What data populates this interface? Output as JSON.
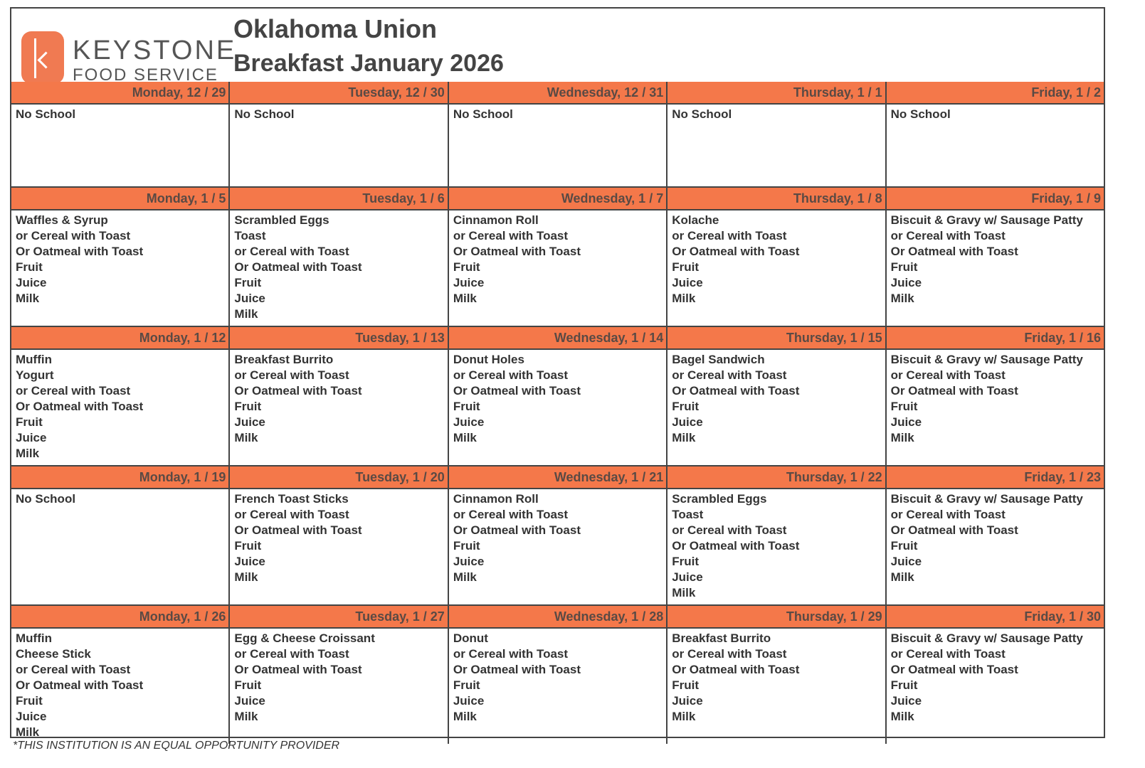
{
  "logo": {
    "word1": "KEYSTONE",
    "word2": "FOOD SERVICE",
    "color": "#f07a52"
  },
  "header": {
    "title": "Oklahoma Union",
    "subtitle": "Breakfast January 2026"
  },
  "header_color": "#f4784a",
  "weeks": [
    [
      {
        "date": "Monday, 12 / 29",
        "items": [
          "No School"
        ]
      },
      {
        "date": "Tuesday, 12 / 30",
        "items": [
          "No School"
        ]
      },
      {
        "date": "Wednesday, 12 / 31",
        "items": [
          "No School"
        ]
      },
      {
        "date": "Thursday, 1 / 1",
        "items": [
          "No School"
        ]
      },
      {
        "date": "Friday, 1 / 2",
        "items": [
          "No School"
        ]
      }
    ],
    [
      {
        "date": "Monday, 1 / 5",
        "items": [
          "Waffles & Syrup",
          "or Cereal with Toast",
          "Or Oatmeal with Toast",
          "Fruit",
          "Juice",
          "Milk"
        ]
      },
      {
        "date": "Tuesday, 1 / 6",
        "items": [
          "Scrambled Eggs",
          "Toast",
          "or Cereal with Toast",
          "Or Oatmeal with Toast",
          "Fruit",
          "Juice",
          "Milk"
        ]
      },
      {
        "date": "Wednesday, 1 / 7",
        "items": [
          "Cinnamon Roll",
          "or Cereal with Toast",
          "Or Oatmeal with Toast",
          "Fruit",
          "Juice",
          "Milk"
        ]
      },
      {
        "date": "Thursday, 1 / 8",
        "items": [
          "Kolache",
          "or Cereal with Toast",
          "Or Oatmeal with Toast",
          "Fruit",
          "Juice",
          "Milk"
        ]
      },
      {
        "date": "Friday, 1 / 9",
        "items": [
          "Biscuit & Gravy w/ Sausage Patty",
          "or Cereal with Toast",
          "Or Oatmeal with Toast",
          "Fruit",
          "Juice",
          "Milk"
        ]
      }
    ],
    [
      {
        "date": "Monday, 1 / 12",
        "items": [
          "Muffin",
          "Yogurt",
          "or Cereal with Toast",
          "Or Oatmeal with Toast",
          "Fruit",
          "Juice",
          "Milk"
        ]
      },
      {
        "date": "Tuesday, 1 / 13",
        "items": [
          "Breakfast Burrito",
          "or Cereal with Toast",
          "Or Oatmeal with Toast",
          "Fruit",
          "Juice",
          "Milk"
        ]
      },
      {
        "date": "Wednesday, 1 / 14",
        "items": [
          "Donut Holes",
          "or Cereal with Toast",
          "Or Oatmeal with Toast",
          "Fruit",
          "Juice",
          "Milk"
        ]
      },
      {
        "date": "Thursday, 1 / 15",
        "items": [
          "Bagel Sandwich",
          "or Cereal with Toast",
          "Or Oatmeal with Toast",
          "Fruit",
          "Juice",
          "Milk"
        ]
      },
      {
        "date": "Friday, 1 / 16",
        "items": [
          "Biscuit & Gravy w/ Sausage Patty",
          "or Cereal with Toast",
          "Or Oatmeal with Toast",
          "Fruit",
          "Juice",
          "Milk"
        ]
      }
    ],
    [
      {
        "date": "Monday, 1 / 19",
        "items": [
          "No School"
        ]
      },
      {
        "date": "Tuesday, 1 / 20",
        "items": [
          "French Toast Sticks",
          "or Cereal with Toast",
          "Or Oatmeal with Toast",
          "Fruit",
          "Juice",
          "Milk"
        ]
      },
      {
        "date": "Wednesday, 1 / 21",
        "items": [
          "Cinnamon Roll",
          "or Cereal with Toast",
          "Or Oatmeal with Toast",
          "Fruit",
          "Juice",
          "Milk"
        ]
      },
      {
        "date": "Thursday, 1 / 22",
        "items": [
          "Scrambled Eggs",
          "Toast",
          "or Cereal with Toast",
          "Or Oatmeal with Toast",
          "Fruit",
          "Juice",
          "Milk"
        ]
      },
      {
        "date": "Friday, 1 / 23",
        "items": [
          "Biscuit & Gravy w/ Sausage Patty",
          "or Cereal with Toast",
          "Or Oatmeal with Toast",
          "Fruit",
          "Juice",
          "Milk"
        ]
      }
    ],
    [
      {
        "date": "Monday, 1 / 26",
        "items": [
          "Muffin",
          "Cheese Stick",
          "or Cereal with Toast",
          "Or Oatmeal with Toast",
          "Fruit",
          "Juice",
          "Milk"
        ]
      },
      {
        "date": "Tuesday, 1 / 27",
        "items": [
          "Egg & Cheese Croissant",
          "or Cereal with Toast",
          "Or Oatmeal with Toast",
          "Fruit",
          "Juice",
          "Milk"
        ]
      },
      {
        "date": "Wednesday, 1 / 28",
        "items": [
          "Donut",
          "or Cereal with Toast",
          "Or Oatmeal with Toast",
          "Fruit",
          "Juice",
          "Milk"
        ]
      },
      {
        "date": "Thursday, 1 / 29",
        "items": [
          "Breakfast Burrito",
          "or Cereal with Toast",
          "Or Oatmeal with Toast",
          "Fruit",
          "Juice",
          "Milk"
        ]
      },
      {
        "date": "Friday, 1 / 30",
        "items": [
          "Biscuit & Gravy w/ Sausage Patty",
          "or Cereal with Toast",
          "Or Oatmeal with Toast",
          "Fruit",
          "Juice",
          "Milk"
        ]
      }
    ]
  ],
  "footer": "*THIS INSTITUTION IS AN EQUAL OPPORTUNITY PROVIDER"
}
